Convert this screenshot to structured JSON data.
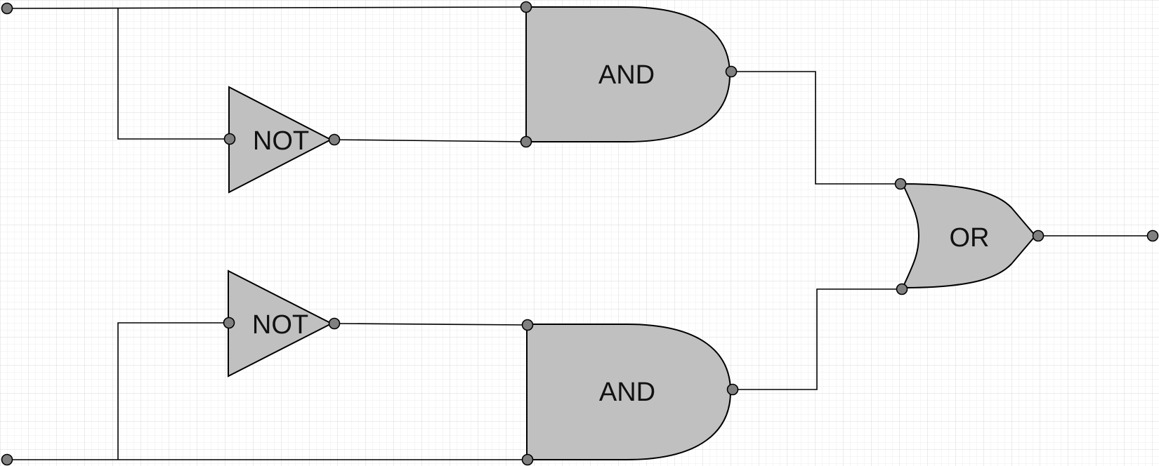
{
  "diagram": {
    "gates": {
      "and_top": "AND",
      "and_bottom": "AND",
      "not_top": "NOT",
      "not_bottom": "NOT",
      "or": "OR"
    }
  },
  "colors": {
    "grid_minor": "#ececec",
    "grid_major": "#d9d9d9",
    "gate_fill": "#c0c0c0",
    "pin_fill": "#808080",
    "stroke": "#000000"
  }
}
